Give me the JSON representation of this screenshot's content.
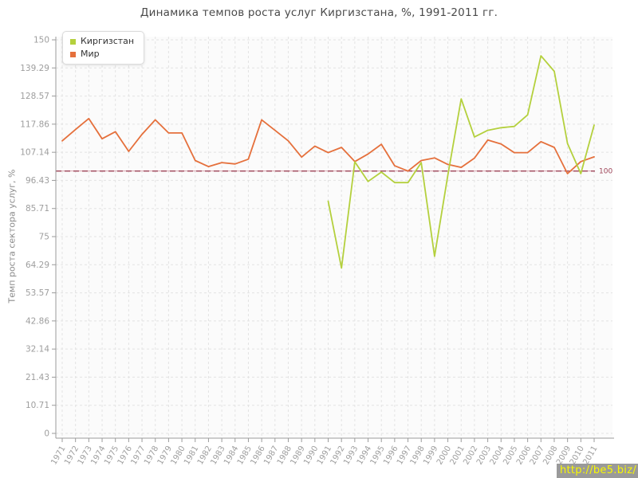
{
  "title": "Динамика темпов роста услуг Киргизстана, %, 1991-2011 гг.",
  "y_axis_title": "Темп роста сектора услуг, %",
  "watermark": "http://be5.biz/",
  "legend": [
    {
      "label": "Киргизстан",
      "color": "#b4d03d"
    },
    {
      "label": "Мир",
      "color": "#e5703c"
    }
  ],
  "reference_line": {
    "value": 100,
    "label": "100",
    "color": "#9e4458",
    "underlay_color": "#d9a3ad"
  },
  "colors": {
    "grid": "#e3e3e3",
    "axis": "#9b9b9b",
    "tick_label": "#9e9e9e",
    "plot_background": "#fbfbfb"
  },
  "chart_data": {
    "type": "line",
    "title": "Динамика темпов роста услуг Киргизстана, %, 1991-2011 гг.",
    "xlabel": "",
    "ylabel": "Темп роста сектора услуг, %",
    "x": [
      1971,
      1972,
      1973,
      1974,
      1975,
      1976,
      1977,
      1978,
      1979,
      1980,
      1981,
      1982,
      1983,
      1984,
      1985,
      1986,
      1987,
      1988,
      1989,
      1990,
      1991,
      1992,
      1993,
      1994,
      1995,
      1996,
      1997,
      1998,
      1999,
      2000,
      2001,
      2002,
      2003,
      2004,
      2005,
      2006,
      2007,
      2008,
      2009,
      2010,
      2011
    ],
    "ylim": [
      0,
      150
    ],
    "yticks": [
      {
        "value": 0,
        "label": "0"
      },
      {
        "value": 10.71,
        "label": "10.71"
      },
      {
        "value": 21.43,
        "label": "21.43"
      },
      {
        "value": 32.14,
        "label": "32.14"
      },
      {
        "value": 42.86,
        "label": "42.86"
      },
      {
        "value": 53.57,
        "label": "53.57"
      },
      {
        "value": 64.29,
        "label": "64.29"
      },
      {
        "value": 75,
        "label": "75"
      },
      {
        "value": 85.71,
        "label": "85.71"
      },
      {
        "value": 96.43,
        "label": "96.43"
      },
      {
        "value": 107.14,
        "label": "107.14"
      },
      {
        "value": 117.86,
        "label": "117.86"
      },
      {
        "value": 128.57,
        "label": "128.57"
      },
      {
        "value": 139.29,
        "label": "139.29"
      },
      {
        "value": 150,
        "label": "150"
      }
    ],
    "grid": true,
    "legend_position": "top-left",
    "series": [
      {
        "name": "Киргизстан",
        "color": "#b4d03d",
        "x": [
          1991,
          1992,
          1993,
          1994,
          1995,
          1996,
          1997,
          1998,
          1999,
          2000,
          2001,
          2002,
          2003,
          2004,
          2005,
          2006,
          2007,
          2008,
          2009,
          2010,
          2011
        ],
        "values": [
          88.5,
          63,
          103.5,
          96,
          99.6,
          95.6,
          95.6,
          103.2,
          67.5,
          98.5,
          127.5,
          113,
          115.5,
          116.5,
          117,
          121.4,
          143.9,
          138,
          110.5,
          99,
          117.5
        ]
      },
      {
        "name": "Мир",
        "color": "#e5703c",
        "x": [
          1971,
          1972,
          1973,
          1974,
          1975,
          1976,
          1977,
          1978,
          1979,
          1980,
          1981,
          1982,
          1983,
          1984,
          1985,
          1986,
          1987,
          1988,
          1989,
          1990,
          1991,
          1992,
          1993,
          1994,
          1995,
          1996,
          1997,
          1998,
          1999,
          2000,
          2001,
          2002,
          2003,
          2004,
          2005,
          2006,
          2007,
          2008,
          2009,
          2010,
          2011
        ],
        "values": [
          111.5,
          115.8,
          120,
          112.3,
          115,
          107.5,
          114,
          119.5,
          114.5,
          114.5,
          104,
          101.7,
          103.2,
          102.7,
          104.5,
          119.5,
          115.5,
          111.5,
          105.3,
          109.5,
          107,
          109,
          103.6,
          106.5,
          110.2,
          102,
          100,
          104,
          105,
          102.5,
          101.4,
          104.9,
          111.8,
          110.3,
          107,
          107,
          111.2,
          109,
          99,
          103.6,
          105.4
        ]
      }
    ]
  }
}
